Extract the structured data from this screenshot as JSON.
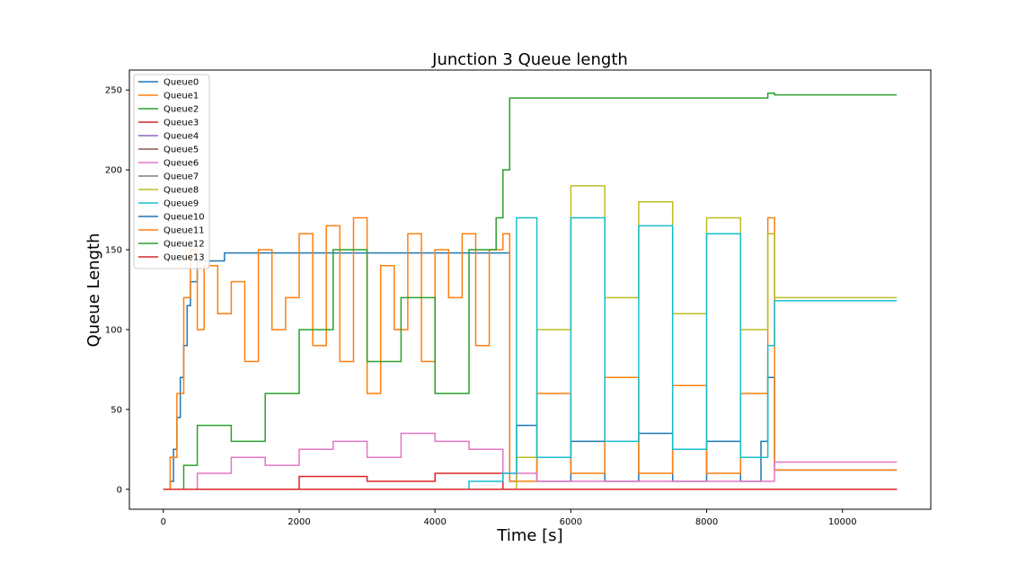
{
  "chart_data": {
    "type": "line",
    "title": "Junction 3 Queue length",
    "xlabel": "Time [s]",
    "ylabel": "Queue Length",
    "xlim": [
      -500,
      11300
    ],
    "ylim": [
      -12.5,
      262.5
    ],
    "xticks": [
      0,
      2000,
      4000,
      6000,
      8000,
      10000
    ],
    "yticks": [
      0,
      50,
      100,
      150,
      200,
      250
    ],
    "grid": false,
    "legend_position": "top-left",
    "series": [
      {
        "name": "Queue0",
        "color": "#1f77b4",
        "x": [
          0,
          100,
          150,
          200,
          250,
          300,
          350,
          400,
          500,
          900,
          1000,
          4500,
          5000,
          5100,
          5200,
          5500,
          6000,
          6500,
          7000,
          7500,
          8000,
          8500,
          8800,
          8900,
          9000,
          10800
        ],
        "y": [
          0,
          5,
          25,
          45,
          70,
          90,
          115,
          130,
          143,
          148,
          148,
          148,
          148,
          5,
          40,
          5,
          30,
          5,
          35,
          5,
          30,
          5,
          30,
          70,
          12,
          12
        ]
      },
      {
        "name": "Queue1",
        "color": "#ff7f0e",
        "x": [
          0,
          100,
          200,
          300,
          400,
          500,
          600,
          800,
          1000,
          1200,
          1400,
          1600,
          1800,
          2000,
          2200,
          2400,
          2600,
          2800,
          3000,
          3200,
          3400,
          3600,
          3800,
          4000,
          4200,
          4400,
          4600,
          4800,
          5000,
          5100,
          5500,
          6000,
          6500,
          7000,
          7500,
          8000,
          8500,
          8900,
          9000,
          10800
        ],
        "y": [
          0,
          20,
          60,
          120,
          150,
          100,
          140,
          110,
          130,
          80,
          150,
          100,
          120,
          160,
          90,
          165,
          80,
          170,
          60,
          140,
          100,
          160,
          80,
          150,
          120,
          160,
          90,
          150,
          160,
          5,
          60,
          10,
          70,
          10,
          65,
          10,
          60,
          170,
          12,
          12
        ]
      },
      {
        "name": "Queue2",
        "color": "#2ca02c",
        "x": [
          0,
          300,
          500,
          1000,
          1500,
          2000,
          2500,
          3000,
          3500,
          4000,
          4500,
          4900,
          5000,
          5100,
          6000,
          6500,
          7000,
          7500,
          8000,
          8500,
          8900,
          9000,
          10800
        ],
        "y": [
          0,
          15,
          40,
          30,
          60,
          100,
          150,
          80,
          120,
          60,
          150,
          170,
          200,
          245,
          245,
          245,
          245,
          245,
          245,
          245,
          248,
          247,
          247
        ]
      },
      {
        "name": "Queue3",
        "color": "#d62728",
        "x": [
          0,
          1000,
          2000,
          3000,
          4000,
          5000,
          6000,
          8000,
          9000,
          10800
        ],
        "y": [
          0,
          0,
          8,
          5,
          10,
          0,
          0,
          0,
          0,
          0
        ]
      },
      {
        "name": "Queue4",
        "color": "#9467bd",
        "x": [
          0,
          2000,
          4000,
          6000,
          8000,
          9000,
          10800
        ],
        "y": [
          0,
          0,
          0,
          0,
          0,
          0,
          0
        ]
      },
      {
        "name": "Queue5",
        "color": "#8c564b",
        "x": [
          0,
          2000,
          4000,
          6000,
          8000,
          9000,
          10800
        ],
        "y": [
          0,
          0,
          0,
          0,
          0,
          0,
          0
        ]
      },
      {
        "name": "Queue6",
        "color": "#e377c2",
        "x": [
          0,
          500,
          1000,
          1500,
          2000,
          2500,
          3000,
          3500,
          4000,
          4500,
          5000,
          5500,
          6000,
          7000,
          8000,
          9000,
          10800
        ],
        "y": [
          0,
          10,
          20,
          15,
          25,
          30,
          20,
          35,
          30,
          25,
          10,
          5,
          5,
          5,
          5,
          17,
          17
        ]
      },
      {
        "name": "Queue7",
        "color": "#7f7f7f",
        "x": [
          0,
          2000,
          4000,
          6000,
          8000,
          9000,
          10800
        ],
        "y": [
          0,
          0,
          0,
          0,
          0,
          0,
          0
        ]
      },
      {
        "name": "Queue8",
        "color": "#bcbd22",
        "x": [
          0,
          5000,
          5200,
          5500,
          6000,
          6500,
          7000,
          7500,
          8000,
          8500,
          8900,
          9000,
          10800
        ],
        "y": [
          0,
          0,
          20,
          100,
          190,
          120,
          180,
          110,
          170,
          100,
          160,
          120,
          120
        ]
      },
      {
        "name": "Queue9",
        "color": "#17becf",
        "x": [
          0,
          4500,
          5000,
          5200,
          5500,
          6000,
          6500,
          7000,
          7500,
          8000,
          8500,
          8900,
          9000,
          10800
        ],
        "y": [
          0,
          5,
          10,
          170,
          20,
          170,
          30,
          165,
          25,
          160,
          20,
          90,
          118,
          118
        ]
      },
      {
        "name": "Queue10",
        "color": "#1f77b4",
        "x": [
          0,
          5000,
          6000,
          7000,
          8000,
          9000,
          10800
        ],
        "y": [
          0,
          0,
          0,
          0,
          0,
          0,
          0
        ]
      },
      {
        "name": "Queue11",
        "color": "#ff7f0e",
        "x": [
          0,
          5000,
          6000,
          7000,
          8000,
          9000,
          10800
        ],
        "y": [
          0,
          0,
          0,
          0,
          0,
          0,
          0
        ]
      },
      {
        "name": "Queue12",
        "color": "#2ca02c",
        "x": [
          0,
          5000,
          6000,
          7000,
          8000,
          9000,
          10800
        ],
        "y": [
          0,
          0,
          0,
          0,
          0,
          0,
          0
        ]
      },
      {
        "name": "Queue13",
        "color": "#d62728",
        "x": [
          0,
          5000,
          6000,
          7000,
          8000,
          9000,
          10800
        ],
        "y": [
          0,
          0,
          0,
          0,
          0,
          0,
          0
        ]
      }
    ]
  }
}
